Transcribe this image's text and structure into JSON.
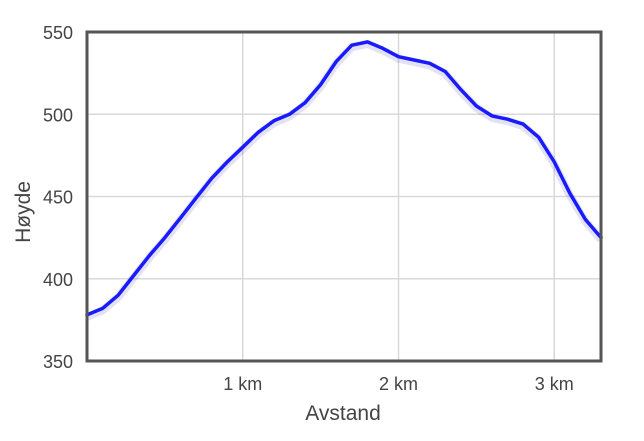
{
  "chart_data": {
    "type": "line",
    "title": "",
    "xlabel": "Avstand",
    "ylabel": "Høyde",
    "x_unit": "km",
    "xlim": [
      0,
      3.3
    ],
    "ylim": [
      350,
      550
    ],
    "x_ticks": [
      1,
      2,
      3
    ],
    "x_tick_labels": [
      "1 km",
      "2 km",
      "3 km"
    ],
    "y_ticks": [
      350,
      400,
      450,
      500,
      550
    ],
    "y_tick_labels": [
      "350",
      "400",
      "450",
      "500",
      "550"
    ],
    "grid": true,
    "legend": false,
    "series": [
      {
        "color": "#1a1aff",
        "x": [
          0.0,
          0.1,
          0.2,
          0.3,
          0.4,
          0.5,
          0.6,
          0.7,
          0.8,
          0.9,
          1.0,
          1.1,
          1.2,
          1.3,
          1.4,
          1.5,
          1.6,
          1.7,
          1.8,
          1.9,
          2.0,
          2.1,
          2.2,
          2.3,
          2.4,
          2.5,
          2.6,
          2.7,
          2.8,
          2.9,
          3.0,
          3.1,
          3.2,
          3.3
        ],
        "y": [
          378,
          382,
          390,
          402,
          414,
          425,
          437,
          449,
          461,
          471,
          480,
          489,
          496,
          500,
          507,
          518,
          532,
          542,
          544,
          540,
          535,
          533,
          531,
          526,
          515,
          505,
          499,
          497,
          494,
          486,
          471,
          452,
          436,
          425
        ]
      }
    ]
  }
}
